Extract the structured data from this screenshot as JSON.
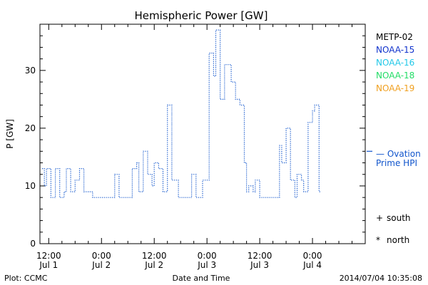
{
  "chart_data": {
    "type": "line",
    "title": "Hemispheric Power [GW]",
    "ylabel": "P [GW]",
    "xlabel": "Date and Time",
    "ylim": [
      0,
      38
    ],
    "y_ticks": [
      0,
      10,
      20,
      30
    ],
    "x_ticks": [
      {
        "hour": 0,
        "time": "12:00",
        "date": "Jul 1"
      },
      {
        "hour": 12,
        "time": "0:00",
        "date": "Jul 2"
      },
      {
        "hour": 24,
        "time": "12:00",
        "date": "Jul 2"
      },
      {
        "hour": 36,
        "time": "0:00",
        "date": "Jul 3"
      },
      {
        "hour": 48,
        "time": "12:00",
        "date": "Jul 3"
      },
      {
        "hour": 60,
        "time": "0:00",
        "date": "Jul 4"
      }
    ],
    "xlim_hours": [
      -2,
      72
    ],
    "legend": {
      "position": "right",
      "items": [
        {
          "name": "METP-02",
          "color": "#000000"
        },
        {
          "name": "NOAA-15",
          "color": "#1133cc"
        },
        {
          "name": "NOAA-16",
          "color": "#22c8e8"
        },
        {
          "name": "NOAA-18",
          "color": "#22dd66"
        },
        {
          "name": "NOAA-19",
          "color": "#f0a020"
        }
      ]
    },
    "series": [
      {
        "name": "Ovation Prime HPI",
        "color": "#1155cc",
        "style": "dotted-step",
        "points": [
          [
            -1.5,
            13
          ],
          [
            -1.0,
            10
          ],
          [
            -0.5,
            13
          ],
          [
            0.5,
            8
          ],
          [
            1.5,
            13
          ],
          [
            2.5,
            8
          ],
          [
            3.5,
            9
          ],
          [
            4.0,
            13
          ],
          [
            5.0,
            9
          ],
          [
            6.0,
            11
          ],
          [
            7.0,
            13
          ],
          [
            8.0,
            9
          ],
          [
            10.0,
            8
          ],
          [
            14.0,
            8
          ],
          [
            15.0,
            12
          ],
          [
            16.0,
            8
          ],
          [
            18.0,
            8
          ],
          [
            19.0,
            13
          ],
          [
            20.0,
            14
          ],
          [
            20.5,
            9
          ],
          [
            21.5,
            16
          ],
          [
            22.5,
            12
          ],
          [
            23.5,
            10
          ],
          [
            24.0,
            14
          ],
          [
            25.0,
            13
          ],
          [
            26.0,
            9
          ],
          [
            27.0,
            24
          ],
          [
            28.0,
            11
          ],
          [
            29.5,
            8
          ],
          [
            32.5,
            12
          ],
          [
            33.5,
            8
          ],
          [
            35.0,
            11
          ],
          [
            36.5,
            33
          ],
          [
            37.5,
            29
          ],
          [
            38.0,
            37
          ],
          [
            39.0,
            25
          ],
          [
            40.0,
            31
          ],
          [
            41.5,
            28
          ],
          [
            42.5,
            25
          ],
          [
            43.5,
            24
          ],
          [
            44.5,
            14
          ],
          [
            45.0,
            9
          ],
          [
            45.5,
            10
          ],
          [
            46.5,
            9
          ],
          [
            47.0,
            11
          ],
          [
            48.0,
            8
          ],
          [
            52.5,
            17
          ],
          [
            53.0,
            14
          ],
          [
            54.0,
            20
          ],
          [
            55.0,
            11
          ],
          [
            56.0,
            8
          ],
          [
            56.5,
            12
          ],
          [
            57.5,
            11
          ],
          [
            58.0,
            9
          ],
          [
            59.0,
            21
          ],
          [
            60.0,
            23
          ],
          [
            60.5,
            24
          ],
          [
            61.5,
            9
          ],
          [
            62.0,
            9
          ]
        ]
      }
    ],
    "hpi_mark": 16,
    "hpi_label_line1": "— Ovation",
    "hpi_label_line2": "Prime HPI",
    "symbols": [
      {
        "glyph": "+",
        "label": "south"
      },
      {
        "glyph": "*",
        "label": "north"
      }
    ]
  },
  "footer": {
    "left": "Plot: CCMC",
    "center": "Date and Time",
    "right": "2014/07/04 10:35:08"
  }
}
